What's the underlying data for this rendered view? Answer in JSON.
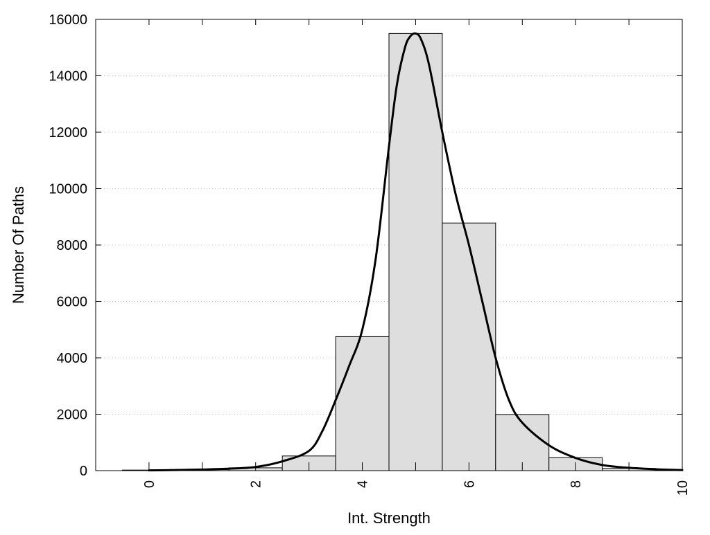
{
  "chart_data": {
    "type": "bar",
    "title": "",
    "xlabel": "Int. Strength",
    "ylabel": "Number Of Paths",
    "xlim": [
      -1,
      10
    ],
    "ylim": [
      0,
      16000
    ],
    "x_ticks": [
      "0",
      "2",
      "4",
      "6",
      "8",
      "10"
    ],
    "y_ticks": [
      "0",
      "2000",
      "4000",
      "6000",
      "8000",
      "10000",
      "12000",
      "14000",
      "16000"
    ],
    "x_minor_ticks": [
      0,
      1,
      2,
      3,
      4,
      5,
      6,
      7,
      8,
      9,
      10
    ],
    "grid": "horizontal-dotted",
    "bar_color": "#dedede",
    "bar_edge_color": "#000000",
    "curve_color": "#000000",
    "series": [
      {
        "type": "bar",
        "bin_width": 1,
        "x": [
          0,
          1,
          2,
          3,
          4,
          5,
          6,
          7,
          8,
          9,
          10
        ],
        "values": [
          20,
          40,
          100,
          520,
          4750,
          15500,
          8780,
          1990,
          460,
          80,
          20
        ]
      },
      {
        "type": "line",
        "x": [
          0,
          0.5,
          1,
          1.5,
          2,
          2.5,
          3,
          3.25,
          3.5,
          3.75,
          4,
          4.25,
          4.5,
          4.65,
          4.8,
          4.9,
          5,
          5.1,
          5.25,
          5.5,
          5.75,
          6,
          6.25,
          6.5,
          6.75,
          7,
          7.5,
          8,
          8.5,
          9,
          9.5,
          10
        ],
        "values": [
          10,
          20,
          40,
          70,
          130,
          330,
          700,
          1400,
          2500,
          3700,
          5000,
          7500,
          11500,
          13700,
          15000,
          15400,
          15500,
          15300,
          14400,
          12000,
          9800,
          8000,
          6000,
          4000,
          2500,
          1700,
          900,
          450,
          200,
          100,
          50,
          20
        ]
      }
    ]
  }
}
